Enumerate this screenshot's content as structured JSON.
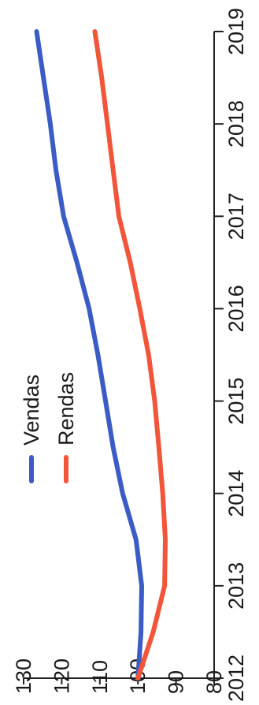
{
  "chart_data": {
    "type": "line",
    "orientation": "rotated-90-clockwise",
    "x": [
      2012,
      2012.5,
      2013,
      2013.5,
      2014,
      2014.5,
      2015,
      2015.5,
      2016,
      2016.5,
      2017,
      2017.5,
      2018,
      2018.5,
      2019
    ],
    "x_ticks": [
      "2012",
      "2013",
      "2014",
      "2015",
      "2016",
      "2017",
      "2018",
      "2019"
    ],
    "y_ticks": [
      "80",
      "90",
      "100",
      "110",
      "120",
      "130"
    ],
    "xlim": [
      2012,
      2019
    ],
    "ylim": [
      80,
      130
    ],
    "grid": false,
    "legend_position": "top-left",
    "series": [
      {
        "name": "Vendas",
        "color": "#3a5cc4",
        "values": [
          100,
          99.2,
          99,
          100.5,
          104,
          106.5,
          108.5,
          110.5,
          112.8,
          116,
          119.5,
          121.5,
          123,
          124.8,
          126.6
        ]
      },
      {
        "name": "Rendas",
        "color": "#f2553a",
        "values": [
          100,
          96,
          93,
          92.8,
          93.5,
          94.5,
          95.6,
          97.2,
          99.5,
          102,
          105,
          106.5,
          108,
          109.5,
          111.3
        ]
      }
    ]
  }
}
